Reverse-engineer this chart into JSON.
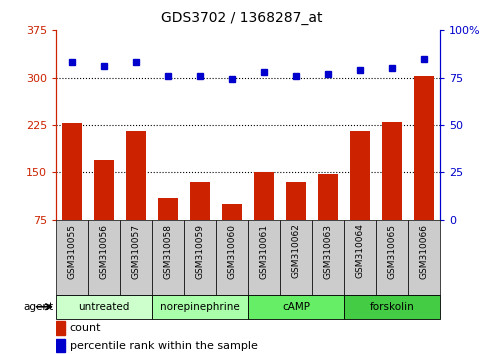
{
  "title": "GDS3702 / 1368287_at",
  "samples": [
    "GSM310055",
    "GSM310056",
    "GSM310057",
    "GSM310058",
    "GSM310059",
    "GSM310060",
    "GSM310061",
    "GSM310062",
    "GSM310063",
    "GSM310064",
    "GSM310065",
    "GSM310066"
  ],
  "counts": [
    228,
    170,
    215,
    110,
    135,
    100,
    150,
    135,
    148,
    215,
    230,
    303
  ],
  "percentiles": [
    83,
    81,
    83,
    76,
    76,
    74,
    78,
    76,
    77,
    79,
    80,
    85
  ],
  "agents": [
    {
      "label": "untreated",
      "start": 0,
      "end": 3,
      "color": "#ccffcc"
    },
    {
      "label": "norepinephrine",
      "start": 3,
      "end": 6,
      "color": "#aaffaa"
    },
    {
      "label": "cAMP",
      "start": 6,
      "end": 9,
      "color": "#66ee66"
    },
    {
      "label": "forskolin",
      "start": 9,
      "end": 12,
      "color": "#44cc44"
    }
  ],
  "ylim_left": [
    75,
    375
  ],
  "ylim_right": [
    0,
    100
  ],
  "yticks_left": [
    75,
    150,
    225,
    300,
    375
  ],
  "yticks_right": [
    0,
    25,
    50,
    75,
    100
  ],
  "bar_color": "#cc2200",
  "dot_color": "#0000cc",
  "sample_bg": "#cccccc",
  "grid_color": "#000000",
  "left_axis_color": "#cc2200",
  "right_axis_color": "#0000cc",
  "fig_width": 4.83,
  "fig_height": 3.54,
  "dpi": 100
}
